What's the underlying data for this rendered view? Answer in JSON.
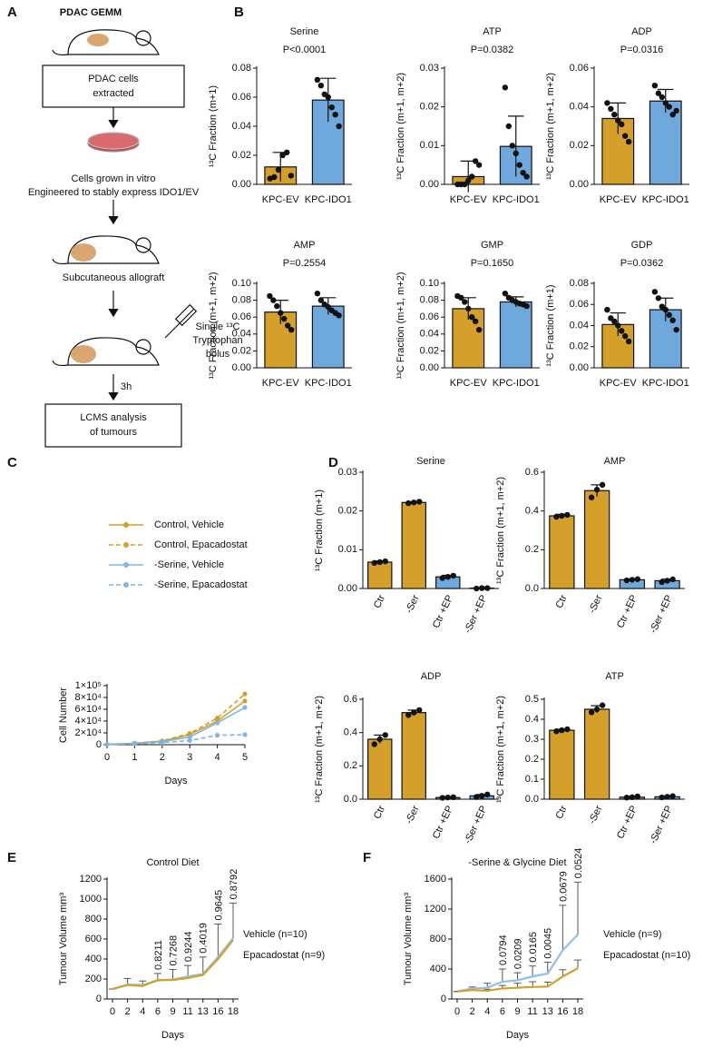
{
  "panel_labels": [
    "A",
    "B",
    "C",
    "D",
    "E",
    "F"
  ],
  "panel_a": {
    "title": "PDAC GEMM",
    "box1": [
      "PDAC cells",
      "extracted"
    ],
    "step2": [
      "Cells grown in vitro",
      "Engineered to stably express IDO1/EV"
    ],
    "step3": "Subcutaneous allograft",
    "injection": [
      "Single ¹³C",
      "Tryptophan",
      "bolus"
    ],
    "time": "3h",
    "box2": [
      "LCMS analysis",
      "of tumours"
    ]
  },
  "chart_data": [
    {
      "type": "bar",
      "title": "Serine",
      "subtitle": "P<0.0001",
      "ylabel": "¹³C Fraction (m+1)",
      "categories": [
        "KPC-EV",
        "KPC-IDO1"
      ],
      "colors": [
        "#d4a02a",
        "#6fa8dc"
      ],
      "values": [
        0.012,
        0.058
      ],
      "errors": [
        0.01,
        0.015
      ],
      "points": [
        [
          0.004,
          0.005,
          0.01,
          0.02,
          0.022,
          0.006
        ],
        [
          0.072,
          0.068,
          0.062,
          0.06,
          0.053,
          0.048,
          0.04
        ]
      ],
      "ylim": [
        0,
        0.08
      ],
      "yticks": [
        {
          "value": 0,
          "label": "0.00"
        },
        0.02,
        0.04,
        0.06,
        0.08
      ]
    },
    {
      "type": "bar",
      "title": "ATP",
      "subtitle": "P=0.0382",
      "ylabel": "¹³C Fraction (m+1, m+2)",
      "categories": [
        "KPC-EV",
        "KPC-IDO1"
      ],
      "colors": [
        "#d4a02a",
        "#6fa8dc"
      ],
      "values": [
        0.002,
        0.0098
      ],
      "errors": [
        0.004,
        0.0078
      ],
      "points": [
        [
          0,
          0,
          0,
          0.001,
          0.002,
          0.006,
          0.005
        ],
        [
          0.025,
          0.015,
          0.01,
          0.008,
          0.005,
          0.003,
          0.002
        ]
      ],
      "ylim": [
        0,
        0.03
      ],
      "yticks": [
        {
          "value": 0,
          "label": "0.00"
        },
        0.01,
        0.02,
        0.03
      ]
    },
    {
      "type": "bar",
      "title": "ADP",
      "subtitle": "P=0.0316",
      "ylabel": "¹³C Fraction (m+1, m+2)",
      "categories": [
        "KPC-EV",
        "KPC-IDO1"
      ],
      "colors": [
        "#d4a02a",
        "#6fa8dc"
      ],
      "values": [
        0.034,
        0.043
      ],
      "errors": [
        0.008,
        0.006
      ],
      "points": [
        [
          0.042,
          0.039,
          0.036,
          0.033,
          0.031,
          0.025,
          0.022
        ],
        [
          0.051,
          0.047,
          0.045,
          0.042,
          0.04,
          0.036,
          0.038
        ]
      ],
      "ylim": [
        0,
        0.06
      ],
      "yticks": [
        {
          "value": 0,
          "label": "0.00"
        },
        0.02,
        0.04,
        0.06
      ]
    },
    {
      "type": "bar",
      "title": "AMP",
      "subtitle": "P=0.2554",
      "ylabel": "¹³C Fraction (m+1, m+2)",
      "categories": [
        "KPC-EV",
        "KPC-IDO1"
      ],
      "colors": [
        "#d4a02a",
        "#6fa8dc"
      ],
      "values": [
        0.066,
        0.073
      ],
      "errors": [
        0.014,
        0.01
      ],
      "points": [
        [
          0.085,
          0.08,
          0.073,
          0.065,
          0.058,
          0.05,
          0.045
        ],
        [
          0.088,
          0.08,
          0.075,
          0.072,
          0.068,
          0.065,
          0.062
        ]
      ],
      "ylim": [
        0,
        0.1
      ],
      "yticks": [
        {
          "value": 0,
          "label": "0.00"
        },
        0.02,
        0.04,
        0.06,
        0.08,
        {
          "value": 0.1,
          "label": "0.10"
        }
      ]
    },
    {
      "type": "bar",
      "title": "GMP",
      "subtitle": "P=0.1650",
      "ylabel": "¹³C Fraction (m+1, m+2)",
      "categories": [
        "KPC-EV",
        "KPC-IDO1"
      ],
      "colors": [
        "#d4a02a",
        "#6fa8dc"
      ],
      "values": [
        0.07,
        0.078
      ],
      "errors": [
        0.013,
        0.006
      ],
      "points": [
        [
          0.085,
          0.083,
          0.078,
          0.07,
          0.06,
          0.055,
          0.045
        ],
        [
          0.088,
          0.083,
          0.08,
          0.078,
          0.076,
          0.075,
          0.073
        ]
      ],
      "ylim": [
        0,
        0.1
      ],
      "yticks": [
        {
          "value": 0,
          "label": "0.00"
        },
        0.02,
        0.04,
        0.06,
        0.08,
        {
          "value": 0.1,
          "label": "0.10"
        }
      ]
    },
    {
      "type": "bar",
      "title": "GDP",
      "subtitle": "P=0.0362",
      "ylabel": "¹³C Fraction (m+1)",
      "categories": [
        "KPC-EV",
        "KPC-IDO1"
      ],
      "colors": [
        "#d4a02a",
        "#6fa8dc"
      ],
      "values": [
        0.041,
        0.055
      ],
      "errors": [
        0.011,
        0.011
      ],
      "points": [
        [
          0.055,
          0.047,
          0.044,
          0.04,
          0.035,
          0.03,
          0.025
        ],
        [
          0.072,
          0.066,
          0.058,
          0.055,
          0.05,
          0.045,
          0.036
        ]
      ],
      "ylim": [
        0,
        0.08
      ],
      "yticks": [
        {
          "value": 0,
          "label": "0.00"
        },
        0.02,
        0.04,
        0.06,
        0.08
      ]
    },
    {
      "type": "line",
      "xlabel": "Days",
      "ylabel": "Cell Number",
      "x": [
        0,
        1,
        2,
        3,
        4,
        5
      ],
      "xlim": [
        0,
        5
      ],
      "xticks": [
        0,
        1,
        2,
        3,
        4,
        5
      ],
      "ylim": [
        0,
        100000
      ],
      "yticks": [
        0,
        {
          "value": 20000,
          "label": "2×10⁴"
        },
        {
          "value": 40000,
          "label": "4×10⁴"
        },
        {
          "value": 60000,
          "label": "6×10⁴"
        },
        {
          "value": 80000,
          "label": "8×10⁴"
        },
        {
          "value": 100000,
          "label": "1×10⁵"
        }
      ],
      "series": [
        {
          "name": "Control, Vehicle",
          "color": "#d4a02a",
          "dashed": false,
          "values": [
            500,
            2500,
            6000,
            17000,
            40000,
            74000
          ]
        },
        {
          "name": "Control, Epacadostat",
          "color": "#d4a02a",
          "dashed": true,
          "values": [
            500,
            2500,
            6500,
            19000,
            45000,
            86000
          ]
        },
        {
          "name": "-Serine, Vehicle",
          "color": "#7fb5e6",
          "dashed": false,
          "values": [
            500,
            2000,
            5000,
            13000,
            37000,
            63000
          ]
        },
        {
          "name": "-Serine, Epacadostat",
          "color": "#7fb5e6",
          "dashed": true,
          "values": [
            500,
            1500,
            3500,
            7000,
            16000,
            17000
          ]
        }
      ]
    },
    {
      "type": "bar",
      "title": "Serine",
      "ylabel": "¹³C Fraction (m+1)",
      "categories": [
        "Ctr",
        "-Ser",
        "Ctr +EP",
        "-Ser +EP"
      ],
      "colors": [
        "#d4a02a",
        "#d4a02a",
        "#6fa8dc",
        "#6fa8dc"
      ],
      "values": [
        0.0068,
        0.0222,
        0.003,
        0.0001
      ],
      "errors": [
        0.0003,
        0.0002,
        0.0004,
        0.0001
      ],
      "points": [
        [
          0.0066,
          0.0068,
          0.007
        ],
        [
          0.022,
          0.0222,
          0.0224
        ],
        [
          0.0027,
          0.003,
          0.0033
        ],
        [
          0,
          0.0001,
          0.0001
        ]
      ],
      "ylim": [
        0,
        0.03
      ],
      "yticks": [
        {
          "value": 0,
          "label": "0.00"
        },
        0.01,
        0.02,
        0.03
      ]
    },
    {
      "type": "bar",
      "title": "AMP",
      "ylabel": "¹³C Fraction (m+1, m+2)",
      "categories": [
        "Ctr",
        "-Ser",
        "Ctr +EP",
        "-Ser +EP"
      ],
      "colors": [
        "#d4a02a",
        "#d4a02a",
        "#6fa8dc",
        "#6fa8dc"
      ],
      "values": [
        0.375,
        0.505,
        0.045,
        0.04
      ],
      "errors": [
        0.008,
        0.03,
        0.004,
        0.008
      ],
      "points": [
        [
          0.37,
          0.375,
          0.38
        ],
        [
          0.47,
          0.51,
          0.535
        ],
        [
          0.042,
          0.045,
          0.048
        ],
        [
          0.033,
          0.04,
          0.047
        ]
      ],
      "ylim": [
        0,
        0.6
      ],
      "yticks": [
        {
          "value": 0,
          "label": "0.0"
        },
        0.2,
        0.4,
        0.6
      ]
    },
    {
      "type": "bar",
      "title": "ADP",
      "ylabel": "¹³C Fraction (m+1, m+2)",
      "categories": [
        "Ctr",
        "-Ser",
        "Ctr +EP",
        "-Ser +EP"
      ],
      "colors": [
        "#d4a02a",
        "#d4a02a",
        "#6fa8dc",
        "#6fa8dc"
      ],
      "values": [
        0.36,
        0.52,
        0.01,
        0.02
      ],
      "errors": [
        0.025,
        0.015,
        0.002,
        0.008
      ],
      "points": [
        [
          0.33,
          0.36,
          0.385
        ],
        [
          0.505,
          0.52,
          0.535
        ],
        [
          0.008,
          0.01,
          0.012
        ],
        [
          0.013,
          0.02,
          0.028
        ]
      ],
      "ylim": [
        0,
        0.6
      ],
      "yticks": [
        {
          "value": 0,
          "label": "0.0"
        },
        0.2,
        0.4,
        0.6
      ]
    },
    {
      "type": "bar",
      "title": "ATP",
      "ylabel": "¹³C Fraction (m+1, m+2)",
      "categories": [
        "Ctr",
        "-Ser",
        "Ctr +EP",
        "-Ser +EP"
      ],
      "colors": [
        "#d4a02a",
        "#d4a02a",
        "#6fa8dc",
        "#6fa8dc"
      ],
      "values": [
        0.345,
        0.45,
        0.01,
        0.012
      ],
      "errors": [
        0.005,
        0.018,
        0.004,
        0.004
      ],
      "points": [
        [
          0.34,
          0.345,
          0.35
        ],
        [
          0.435,
          0.45,
          0.47
        ],
        [
          0.008,
          0.01,
          0.014
        ],
        [
          0.009,
          0.012,
          0.015
        ]
      ],
      "ylim": [
        0,
        0.5
      ],
      "yticks": [
        {
          "value": 0,
          "label": "0.0"
        },
        0.1,
        0.2,
        0.3,
        0.4,
        0.5
      ]
    },
    {
      "type": "growth",
      "title": "Control Diet",
      "xlabel": "Days",
      "ylabel": "Tumour Volume mm³",
      "categories": [
        0,
        2,
        4,
        6,
        9,
        11,
        13,
        16,
        18
      ],
      "ylim": [
        0,
        1200
      ],
      "yticks": [
        0,
        200,
        400,
        600,
        800,
        1000,
        1200
      ],
      "series": [
        {
          "name": "Vehicle (n=10)",
          "color": "#8fc0ea",
          "values": [
            100,
            145,
            140,
            185,
            195,
            225,
            250,
            420,
            610
          ],
          "errors": [
            0,
            60,
            40,
            70,
            100,
            110,
            170,
            330,
            350
          ]
        },
        {
          "name": "Epacadostat (n=9)",
          "color": "#d4a02a",
          "values": [
            100,
            140,
            130,
            190,
            190,
            210,
            240,
            400,
            590
          ]
        }
      ],
      "annotations": [
        {
          "x": 6,
          "p": 0.8211
        },
        {
          "x": 9,
          "p": 0.7268
        },
        {
          "x": 11,
          "p": 0.9244
        },
        {
          "x": 13,
          "p": 0.4019
        },
        {
          "x": 16,
          "p": 0.9645
        },
        {
          "x": 18,
          "p": 0.8792
        }
      ]
    },
    {
      "type": "growth",
      "title": "-Serine & Glycine Diet",
      "xlabel": "Days",
      "ylabel": "Tumour Volume mm³",
      "categories": [
        0,
        2,
        4,
        6,
        9,
        11,
        13,
        16,
        18
      ],
      "ylim": [
        0,
        1600
      ],
      "yticks": [
        0,
        400,
        800,
        1200,
        1600
      ],
      "series": [
        {
          "name": "Vehicle (n=9)",
          "color": "#8fc0ea",
          "values": [
            100,
            140,
            150,
            230,
            250,
            300,
            340,
            650,
            860
          ],
          "errors": [
            0,
            20,
            60,
            170,
            100,
            140,
            150,
            600,
            700
          ]
        },
        {
          "name": "Epacadostat (n=10)",
          "color": "#d4a02a",
          "values": [
            100,
            120,
            110,
            140,
            150,
            160,
            165,
            300,
            410
          ],
          "errors": [
            0,
            20,
            20,
            40,
            60,
            70,
            60,
            90,
            110
          ]
        }
      ],
      "annotations": [
        {
          "x": 6,
          "p": 0.0794
        },
        {
          "x": 9,
          "p": 0.0209
        },
        {
          "x": 11,
          "p": 0.0165
        },
        {
          "x": 13,
          "p": 0.0045
        },
        {
          "x": 16,
          "p": 0.0679
        },
        {
          "x": 18,
          "p": 0.0524
        }
      ]
    }
  ]
}
